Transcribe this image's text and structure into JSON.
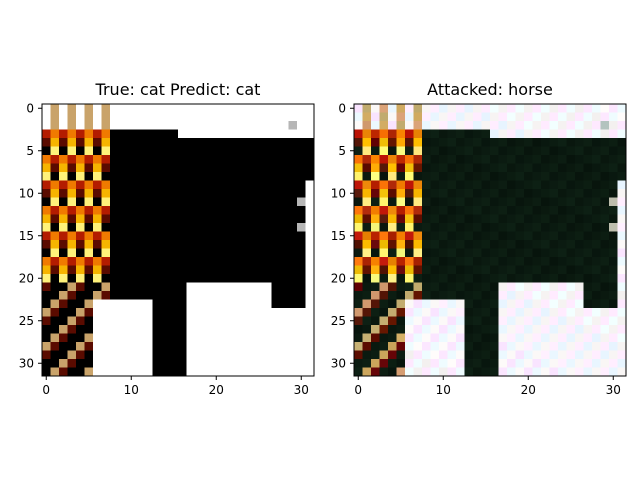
{
  "panels": [
    {
      "title": "True: cat  Predict: cat",
      "x_ticks": [
        "0",
        "10",
        "20",
        "30"
      ],
      "y_ticks": [
        "0",
        "5",
        "10",
        "15",
        "20",
        "25",
        "30"
      ]
    },
    {
      "title": "Attacked: horse",
      "x_ticks": [
        "0",
        "10",
        "20",
        "30"
      ],
      "y_ticks": [
        "0",
        "5",
        "10",
        "15",
        "20",
        "25",
        "30"
      ]
    }
  ],
  "image_grid": {
    "rows": 32,
    "cols": 32
  },
  "colors": {
    "black": "#000000",
    "white": "#ffffff",
    "dark_red": "#5a0b00",
    "red": "#b31c00",
    "orange": "#f07a00",
    "amber": "#f6b400",
    "yellow": "#fff27a",
    "tan": "#c9a36a",
    "gray": "#b6b6b6",
    "attacked_tint_light": "#f3f0ff",
    "attacked_tint_dark": "#0a1a10"
  }
}
